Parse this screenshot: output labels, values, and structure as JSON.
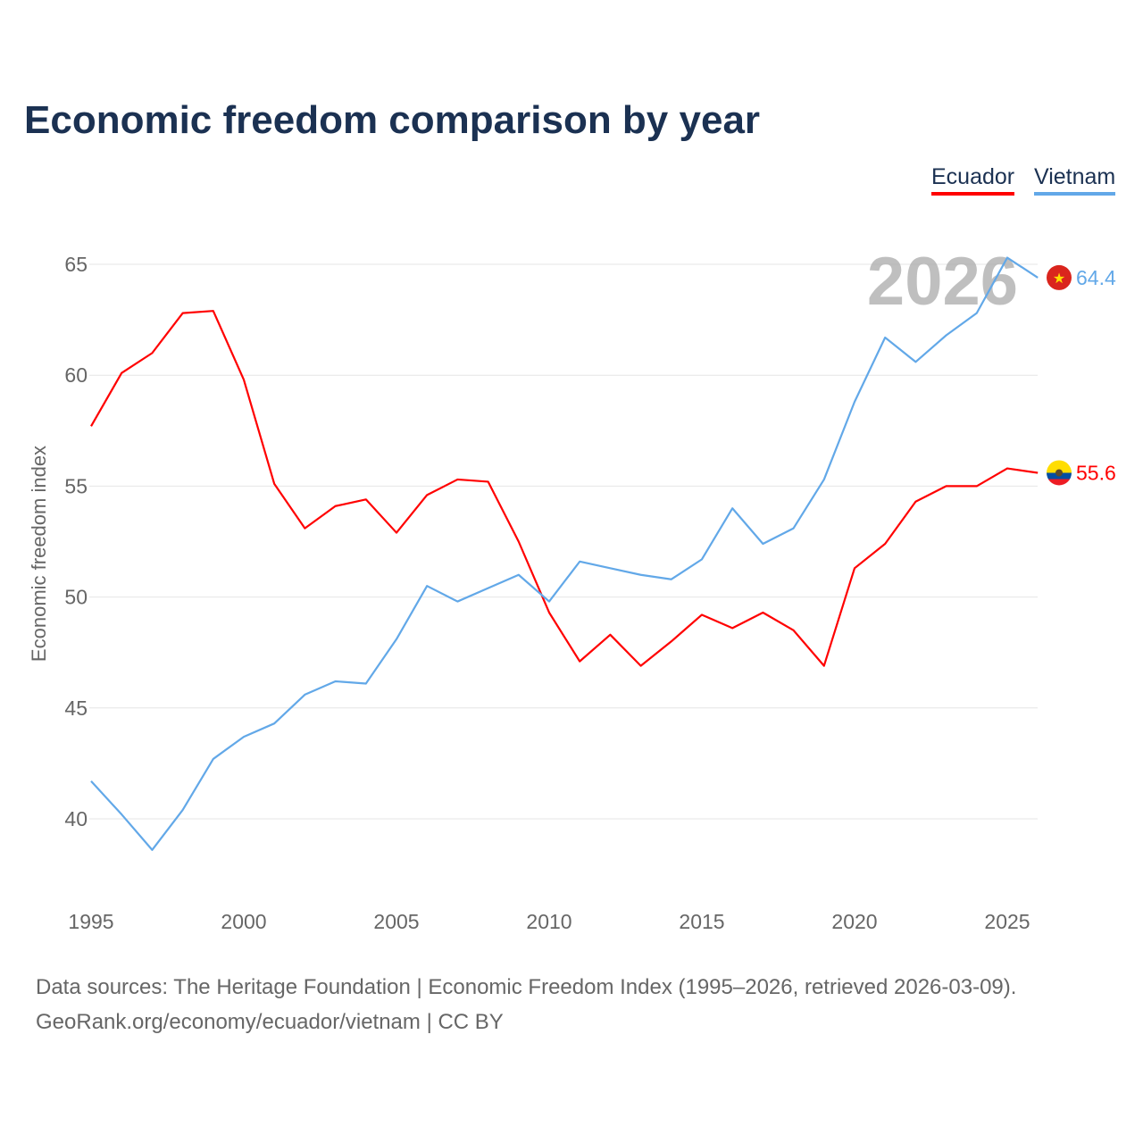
{
  "title": "Economic freedom comparison by year",
  "legend": [
    "Ecuador",
    "Vietnam"
  ],
  "footer": {
    "line1": "Data sources: The Heritage Foundation | Economic Freedom Index (1995–2026, retrieved 2026-03-09).",
    "line2": "GeoRank.org/economy/ecuador/vietnam | CC BY"
  },
  "chart_data": {
    "type": "line",
    "title": "Economic freedom comparison by year",
    "xlabel": "",
    "ylabel": "Economic freedom index",
    "year_watermark": "2026",
    "x": [
      1995,
      1996,
      1997,
      1998,
      1999,
      2000,
      2001,
      2002,
      2003,
      2004,
      2005,
      2006,
      2007,
      2008,
      2009,
      2010,
      2011,
      2012,
      2013,
      2014,
      2015,
      2016,
      2017,
      2018,
      2019,
      2020,
      2021,
      2022,
      2023,
      2024,
      2025,
      2026
    ],
    "xticks": [
      "1995",
      "2000",
      "2005",
      "2010",
      "2015",
      "2020",
      "2025"
    ],
    "yticks": [
      "40",
      "45",
      "50",
      "55",
      "60",
      "65"
    ],
    "ylim": [
      36,
      67
    ],
    "xlim": [
      1995,
      2026
    ],
    "grid": true,
    "legend_position": "top-right",
    "series": [
      {
        "name": "Ecuador",
        "color": "#ff0000",
        "end_label": "55.6",
        "values": [
          57.7,
          60.1,
          61.0,
          62.8,
          62.9,
          59.8,
          55.1,
          53.1,
          54.1,
          54.4,
          52.9,
          54.6,
          55.3,
          55.2,
          52.5,
          49.3,
          47.1,
          48.3,
          46.9,
          48.0,
          49.2,
          48.6,
          49.3,
          48.5,
          46.9,
          51.3,
          52.4,
          54.3,
          55.0,
          55.0,
          55.8,
          55.6
        ]
      },
      {
        "name": "Vietnam",
        "color": "#62a8e8",
        "end_label": "64.4",
        "values": [
          41.7,
          40.2,
          38.6,
          40.4,
          42.7,
          43.7,
          44.3,
          45.6,
          46.2,
          46.1,
          48.1,
          50.5,
          49.8,
          50.4,
          51.0,
          49.8,
          51.6,
          51.3,
          51.0,
          50.8,
          51.7,
          54.0,
          52.4,
          53.1,
          55.3,
          58.8,
          61.7,
          60.6,
          61.8,
          62.8,
          65.3,
          64.4
        ]
      }
    ]
  }
}
